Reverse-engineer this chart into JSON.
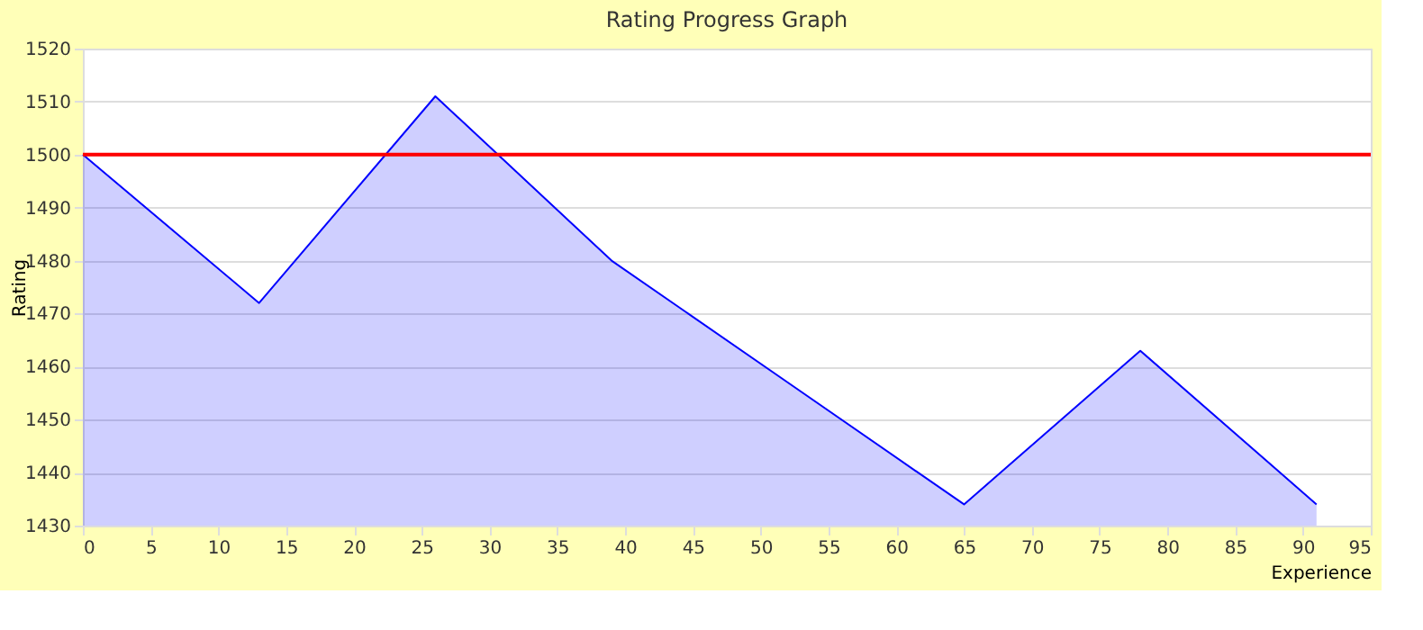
{
  "chart_data": {
    "type": "area",
    "title": "Rating Progress Graph",
    "xlabel": "Experience",
    "ylabel": "Rating",
    "x": [
      0,
      13,
      26,
      39,
      52,
      65,
      78,
      91
    ],
    "series": [
      {
        "color": "#0000ff",
        "values": [
          1500,
          1472,
          1511,
          1480,
          1457,
          1434,
          1463,
          1434
        ]
      }
    ],
    "xlim": [
      0,
      95
    ],
    "xticks": [
      0,
      5,
      10,
      15,
      20,
      25,
      30,
      35,
      40,
      45,
      50,
      55,
      60,
      65,
      70,
      75,
      80,
      85,
      90,
      95
    ],
    "ylim": [
      1430,
      1520
    ],
    "yticks": [
      1430,
      1440,
      1450,
      1460,
      1470,
      1480,
      1490,
      1500,
      1510,
      1520
    ],
    "grid": "y",
    "ref_lines": [
      {
        "axis": "y",
        "value": 1500,
        "color": "#ff0000"
      }
    ]
  }
}
